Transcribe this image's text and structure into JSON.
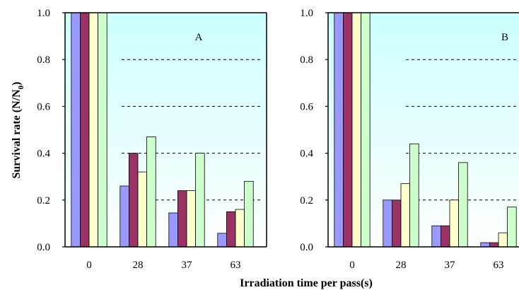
{
  "chart_data": [
    {
      "type": "bar",
      "panel_label": "A",
      "categories": [
        "0",
        "28",
        "37",
        "63"
      ],
      "series": [
        {
          "values": [
            1.0,
            0.26,
            0.145,
            0.058
          ],
          "color": "#9999ff"
        },
        {
          "values": [
            1.0,
            0.4,
            0.24,
            0.15
          ],
          "color": "#993366"
        },
        {
          "values": [
            1.0,
            0.32,
            0.24,
            0.16
          ],
          "color": "#ffffcc"
        },
        {
          "values": [
            1.0,
            0.47,
            0.4,
            0.28
          ],
          "color": "#ccffcc"
        }
      ],
      "ylim": [
        0,
        1.0
      ],
      "yticks": [
        "0.0",
        "0.2",
        "0.4",
        "0.6",
        "0.8",
        "1.0"
      ],
      "ylabel": "Survival rate (N/N0)",
      "grid": "horizontal dashed",
      "background": "gradient light cyan to white"
    },
    {
      "type": "bar",
      "panel_label": "B",
      "categories": [
        "0",
        "28",
        "37",
        "63"
      ],
      "series": [
        {
          "values": [
            1.0,
            0.2,
            0.09,
            0.018
          ],
          "color": "#9999ff"
        },
        {
          "values": [
            1.0,
            0.2,
            0.09,
            0.018
          ],
          "color": "#993366"
        },
        {
          "values": [
            1.0,
            0.27,
            0.2,
            0.06
          ],
          "color": "#ffffcc"
        },
        {
          "values": [
            1.0,
            0.44,
            0.36,
            0.17
          ],
          "color": "#ccffcc"
        }
      ],
      "ylim": [
        0,
        1.0
      ],
      "yticks": [
        "0.0",
        "0.2",
        "0.4",
        "0.6",
        "0.8",
        "1.0"
      ],
      "grid": "horizontal dashed",
      "background": "gradient light cyan to white"
    }
  ],
  "figure": {
    "ylabel_main": "Survival rate (N/N",
    "ylabel_sub": "0",
    "ylabel_close": ")",
    "xlabel": "Irradiation time per pass(s)"
  }
}
